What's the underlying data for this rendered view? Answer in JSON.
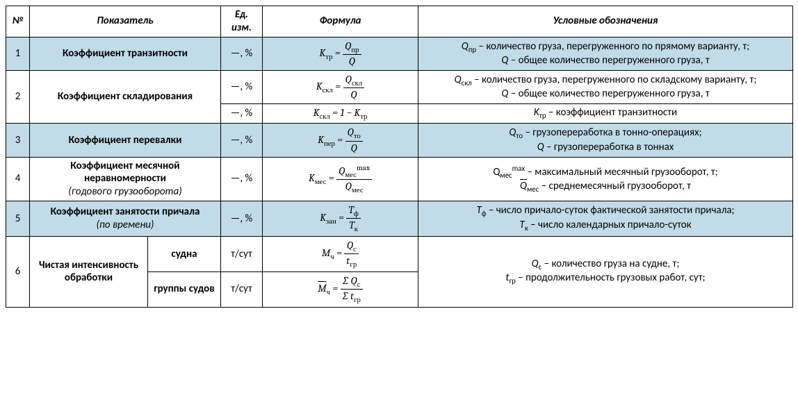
{
  "headers": {
    "num": "№",
    "name": "Показатель",
    "unit": "Ед. изм.",
    "formula": "Формула",
    "desc": "Условные обозначения"
  },
  "rows": {
    "r1": {
      "num": "1",
      "name": "Коэффициент транзитности",
      "unit": "—, %",
      "desc_html": "<i>Q</i><span class='sub'>пр</span> – количество груза, перегруженного по прямому варианту, т;<br><i>Q</i> – общее количество перегруженного груза, т",
      "formula_html": "<span class='eq-row'><i>K</i><span class='sub'>тр</span> = <span class='frac'><span class='num'><i>Q</i><span class='sub'>пр</span></span><span class='den'><i>Q</i></span></span></span>"
    },
    "r2a": {
      "num": "2",
      "name": "Коэффициент складирования",
      "unit": "—, %",
      "desc_html": "<i>Q</i><span class='sub'>скл</span> – количество груза, перегруженного по складскому варианту, т;<br><i>Q</i> – общее количество перегруженного груза, т",
      "formula_html": "<span class='eq-row'><i>K</i><span class='sub'>скл</span> = <span class='frac'><span class='num'><i>Q</i><span class='sub'>скл</span></span><span class='den'><i>Q</i></span></span></span>"
    },
    "r2b": {
      "unit": "—, %",
      "desc_html": "<i>K</i><span class='sub'>тр</span> – коэффициент транзитности",
      "formula_html": "<span class='eq-row'><i>K</i><span class='sub'>скл</span> = 1 − <i>K</i><span class='sub'>тр</span></span>"
    },
    "r3": {
      "num": "3",
      "name": "Коэффициент перевалки",
      "unit": "—, %",
      "desc_html": "<i>Q</i><span class='sub'>то</span> – грузопереработка в тонно-операциях;<br><i>Q</i> – грузопереработка в тоннах",
      "formula_html": "<span class='eq-row'><i>K</i><span class='sub'>пер</span> = <span class='frac'><span class='num'><i>Q</i><span class='sub'>то</span></span><span class='den'><i>Q</i></span></span></span>"
    },
    "r4": {
      "num": "4",
      "name_html": "<b>Коэффициент месячной неравномерности</b><br><span class='sub-italic'>(годового грузооборота)</span>",
      "unit": "—, %",
      "desc_html": "Q<span class='sub'>мес</span><span class='sup'>max</span> – максимальный месячный грузооборот, т;<br><span class='overbar'><i>Q</i></span><span class='sub'>мес</span> – среднемесячный грузооборот, т",
      "formula_html": "<span class='eq-row'><i>K</i><span class='sub'>мес</span> = <span class='frac'><span class='num'>Q<span class='sub'>мес</span><span class='sup'>max</span></span><span class='den'><span class='overbar'><i>Q</i></span><span class='sub'>мес</span></span></span></span>"
    },
    "r5": {
      "num": "5",
      "name_html": "<b>Коэффициент занятости причала</b><br><span class='sub-italic'>(по времени)</span>",
      "unit": "—, %",
      "desc_html": "<i>T</i><span class='sub'>ф</span> – число причало-суток фактической занятости причала;<br><i>T</i><span class='sub'>к</span> – число календарных причало-суток",
      "formula_html": "<span class='eq-row'><i>K</i><span class='sub'>зан</span> = <span class='frac'><span class='num'><i>T</i><span class='sub'>ф</span></span><span class='den'><i>T</i><span class='sub'>к</span></span></span></span>"
    },
    "r6a": {
      "num": "6",
      "name": "Чистая интенсивность обработки",
      "sub": "судна",
      "unit": "т/сут",
      "desc_html": "<i>Q</i><span class='sub'>с</span> – количество груза на судне, т;<br><i>t</i><span class='sub'>гр</span> – продолжительность грузовых работ, сут;",
      "formula_html": "<span class='eq-row'><i>M</i><span class='sub'>ч</span> = <span class='frac'><span class='num'><i>Q</i><span class='sub'>с</span></span><span class='den'><i>t</i><span class='sub'>гр</span></span></span></span>"
    },
    "r6b": {
      "sub": "группы судов",
      "unit": "т/сут",
      "formula_html": "<span class='eq-row'><span class='overbar'><i>M</i></span><span class='sub'>ч</span> = <span class='frac'><span class='num'>∑ <i>Q</i><span class='sub'>с</span></span><span class='den'>∑ <i>t</i><span class='sub'>гр</span></span></span></span>"
    }
  }
}
